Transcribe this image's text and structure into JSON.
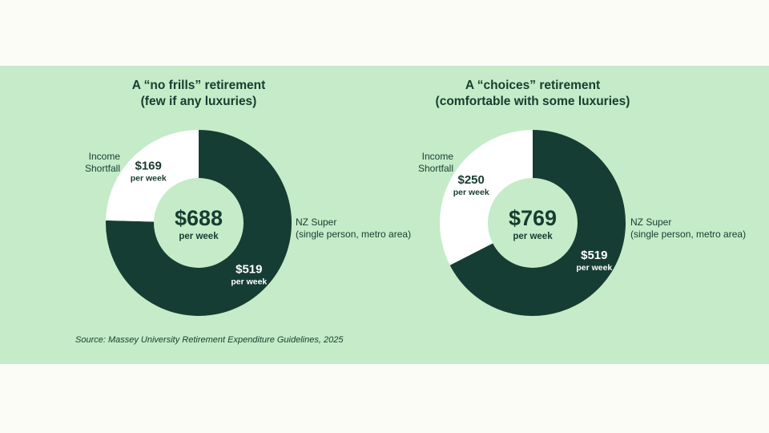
{
  "colors": {
    "background": "#fcfcf7",
    "band": "#c5ebc8",
    "nz_super": "#163d33",
    "shortfall": "#ffffff",
    "text_dark": "#173d31",
    "center_fill": "#c5ebc8"
  },
  "chart_data": [
    {
      "type": "pie",
      "variant": "donut",
      "title_line1": "A “no frills” retirement",
      "title_line2": "(few if any luxuries)",
      "total": {
        "value": "$688",
        "unit": "per week"
      },
      "slices": [
        {
          "label_line1": "NZ Super",
          "label_line2": "(single person, metro area)",
          "value": 519,
          "value_label": "$519",
          "unit": "per week",
          "color": "#163d33"
        },
        {
          "label_line1": "Income",
          "label_line2": "Shortfall",
          "value": 169,
          "value_label": "$169",
          "unit": "per week",
          "color": "#ffffff"
        }
      ]
    },
    {
      "type": "pie",
      "variant": "donut",
      "title_line1": "A “choices” retirement",
      "title_line2": "(comfortable with some luxuries)",
      "total": {
        "value": "$769",
        "unit": "per week"
      },
      "slices": [
        {
          "label_line1": "NZ Super",
          "label_line2": "(single person, metro area)",
          "value": 519,
          "value_label": "$519",
          "unit": "per week",
          "color": "#163d33"
        },
        {
          "label_line1": "Income",
          "label_line2": "Shortfall",
          "value": 250,
          "value_label": "$250",
          "unit": "per week",
          "color": "#ffffff"
        }
      ]
    }
  ],
  "source": "Source: Massey University Retirement Expenditure Guidelines,  2025"
}
